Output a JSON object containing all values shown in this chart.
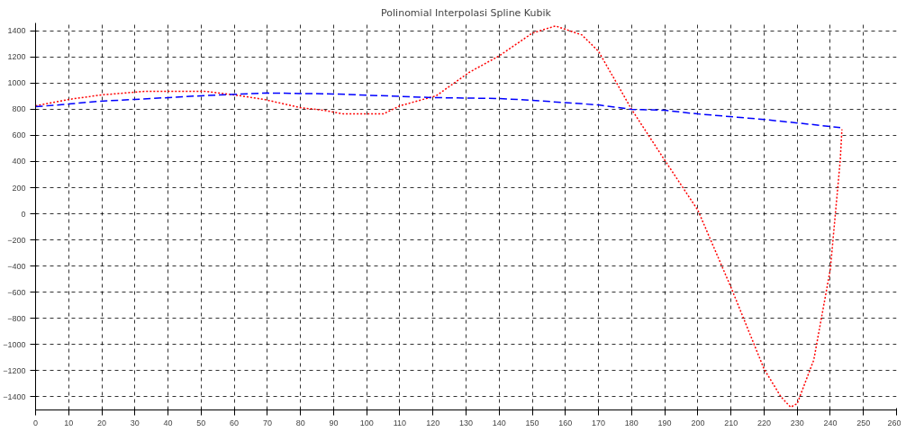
{
  "chart_data": {
    "type": "line",
    "title": "Polinomial Interpolasi Spline Kubik",
    "xlim": [
      0,
      260
    ],
    "xticks": [
      0,
      10,
      20,
      30,
      40,
      50,
      60,
      70,
      80,
      90,
      100,
      110,
      120,
      130,
      140,
      150,
      160,
      170,
      180,
      190,
      200,
      210,
      220,
      230,
      240,
      250,
      260
    ],
    "ylim": [
      -1500,
      1460
    ],
    "yticks": [
      -1400,
      -1200,
      -1000,
      -800,
      -600,
      -400,
      -200,
      0,
      200,
      400,
      600,
      800,
      1000,
      1200,
      1400
    ],
    "grid": true,
    "marker": "none",
    "series": [
      {
        "color": "#ff0000",
        "line_style": "dotted",
        "x": [
          0,
          10,
          20,
          33,
          42,
          51,
          60,
          69,
          80,
          87,
          93,
          100,
          105,
          110,
          121,
          131,
          140,
          150,
          157,
          165,
          170,
          180,
          190,
          200,
          210,
          220,
          225,
          228,
          230,
          235,
          240,
          243,
          243.5
        ],
        "values": [
          826,
          875,
          910,
          937,
          937,
          937,
          910,
          875,
          812,
          792,
          764,
          764,
          764,
          826,
          903,
          1083,
          1208,
          1382,
          1437,
          1368,
          1243,
          799,
          410,
          28,
          -562,
          -1187,
          -1396,
          -1479,
          -1451,
          -1118,
          -424,
          410,
          646
        ]
      },
      {
        "color": "#0000ff",
        "line_style": "dashed",
        "x": [
          0,
          10,
          19,
          30,
          50,
          70,
          90,
          120,
          140,
          150,
          170,
          180,
          190,
          200,
          220,
          243
        ],
        "values": [
          819,
          840,
          861,
          875,
          903,
          924,
          917,
          889,
          882,
          868,
          833,
          799,
          792,
          764,
          722,
          660
        ]
      }
    ]
  }
}
